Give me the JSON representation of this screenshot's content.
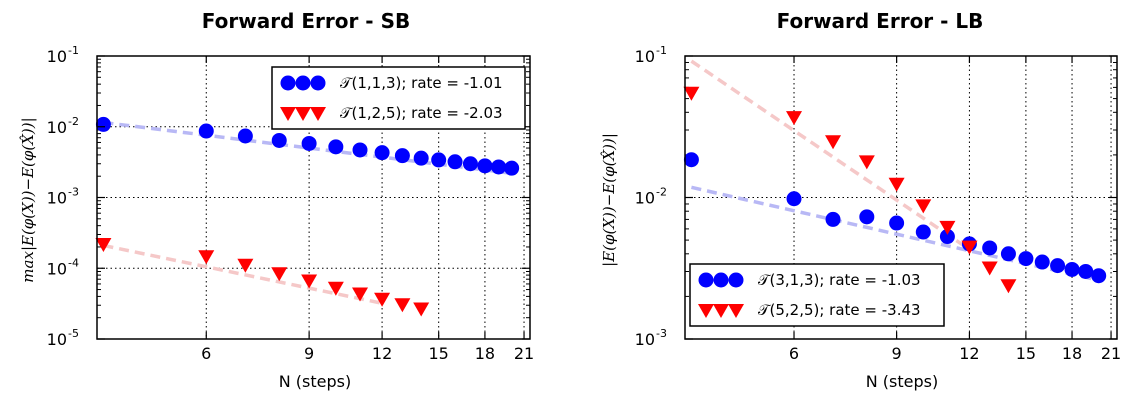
{
  "chart_data": [
    {
      "type": "scatter",
      "title": "Forward Error - SB",
      "xlabel": "N (steps)",
      "ylabel": "max|E(φ(X))−E(φ(X̂))|",
      "xscale": "log",
      "yscale": "log",
      "xlim": [
        3.9,
        21.5
      ],
      "ylim": [
        1e-05,
        0.1
      ],
      "xticks": [
        6,
        9,
        12,
        15,
        18,
        21
      ],
      "yticks": [
        {
          "value": 0.1,
          "base": "10",
          "exp": "-1"
        },
        {
          "value": 0.01,
          "base": "10",
          "exp": "-2"
        },
        {
          "value": 0.001,
          "base": "10",
          "exp": "-3"
        },
        {
          "value": 0.0001,
          "base": "10",
          "exp": "-4"
        },
        {
          "value": 1e-05,
          "base": "10",
          "exp": "-5"
        }
      ],
      "grid": true,
      "legend_position": "top-right",
      "series": [
        {
          "name": "𝒯(1,1,3); rate = -1.01",
          "marker": "circle",
          "color": "#0000ff",
          "fit_color": "#b8b8f5",
          "x": [
            4,
            6,
            7,
            8,
            9,
            10,
            11,
            12,
            13,
            14,
            15,
            16,
            17,
            18,
            19,
            20
          ],
          "y": [
            0.0108,
            0.0087,
            0.0074,
            0.0064,
            0.0058,
            0.0052,
            0.0047,
            0.0043,
            0.0039,
            0.0036,
            0.0034,
            0.0032,
            0.003,
            0.0028,
            0.0027,
            0.0026
          ],
          "fit": {
            "x": [
              4,
              20
            ],
            "y": [
              0.0115,
              0.0022
            ]
          }
        },
        {
          "name": "𝒯(1,2,5); rate = -2.03",
          "marker": "triangle-down",
          "color": "#ff0000",
          "fit_color": "#f5c8c8",
          "x": [
            4,
            6,
            7,
            8,
            9,
            10,
            11,
            12,
            13,
            14
          ],
          "y": [
            0.00022,
            0.000148,
            0.000112,
            8.5e-05,
            6.7e-05,
            5.3e-05,
            4.4e-05,
            3.7e-05,
            3.1e-05,
            2.7e-05
          ],
          "fit": {
            "x": [
              4,
              12
            ],
            "y": [
              0.00021,
              3.2e-05
            ]
          }
        }
      ]
    },
    {
      "type": "scatter",
      "title": "Forward Error - LB",
      "xlabel": "N (steps)",
      "ylabel": "|E(φ(X))−E(φ(X̂))|",
      "xscale": "log",
      "yscale": "log",
      "xlim": [
        3.9,
        21.5
      ],
      "ylim": [
        0.001,
        0.1
      ],
      "xticks": [
        6,
        9,
        12,
        15,
        18,
        21
      ],
      "yticks": [
        {
          "value": 0.1,
          "base": "10",
          "exp": "-1"
        },
        {
          "value": 0.01,
          "base": "10",
          "exp": "-2"
        },
        {
          "value": 0.001,
          "base": "10",
          "exp": "-3"
        }
      ],
      "grid": true,
      "legend_position": "bottom-left",
      "series": [
        {
          "name": "𝒯(3,1,3); rate = -1.03",
          "marker": "circle",
          "color": "#0000ff",
          "fit_color": "#b8b8f5",
          "x": [
            4,
            6,
            7,
            8,
            9,
            10,
            11,
            12,
            13,
            14,
            15,
            16,
            17,
            18,
            19,
            20
          ],
          "y": [
            0.0185,
            0.0098,
            0.007,
            0.0073,
            0.0066,
            0.0057,
            0.0053,
            0.0047,
            0.0044,
            0.004,
            0.0037,
            0.0035,
            0.0033,
            0.0031,
            0.003,
            0.0028
          ],
          "fit": {
            "x": [
              4,
              20
            ],
            "y": [
              0.0118,
              0.0026
            ]
          }
        },
        {
          "name": "𝒯(5,2,5); rate = -3.43",
          "marker": "triangle-down",
          "color": "#ff0000",
          "fit_color": "#f5c8c8",
          "x": [
            4,
            6,
            7,
            8,
            9,
            10,
            11,
            12,
            13,
            14
          ],
          "y": [
            0.055,
            0.037,
            0.025,
            0.018,
            0.0125,
            0.0088,
            0.0062,
            0.0045,
            0.0032,
            0.0024
          ],
          "fit": {
            "x": [
              4,
              12
            ],
            "y": [
              0.092,
              0.0043
            ]
          }
        }
      ]
    }
  ]
}
